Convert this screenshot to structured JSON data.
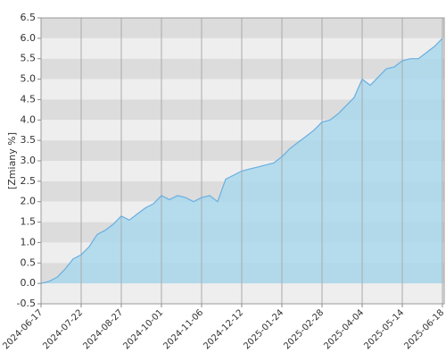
{
  "chart_data": {
    "type": "area",
    "y_label": "[Zmiany %]",
    "categories": [
      "2024-06-17",
      null,
      null,
      null,
      null,
      "2024-07-22",
      null,
      null,
      null,
      null,
      "2024-08-27",
      null,
      null,
      null,
      null,
      "2024-10-01",
      null,
      null,
      null,
      null,
      "2024-11-06",
      null,
      null,
      null,
      null,
      "2024-12-12",
      null,
      null,
      null,
      null,
      "2025-01-24",
      null,
      null,
      null,
      null,
      "2025-02-28",
      null,
      null,
      null,
      null,
      "2025-04-04",
      null,
      null,
      null,
      null,
      "2025-05-14",
      null,
      null,
      null,
      null,
      "2025-06-18"
    ],
    "values": [
      0.0,
      0.05,
      0.15,
      0.35,
      0.6,
      0.7,
      0.9,
      1.2,
      1.3,
      1.45,
      1.65,
      1.55,
      1.7,
      1.85,
      1.95,
      2.15,
      2.05,
      2.15,
      2.1,
      2.0,
      2.1,
      2.15,
      2.0,
      2.55,
      2.65,
      2.75,
      2.8,
      2.85,
      2.9,
      2.95,
      3.1,
      3.3,
      3.45,
      3.6,
      3.75,
      3.95,
      4.0,
      4.15,
      4.35,
      4.55,
      5.0,
      4.85,
      5.05,
      5.25,
      5.3,
      5.45,
      5.5,
      5.5,
      5.65,
      5.8,
      6.0
    ],
    "color": "#6aaee0",
    "fill": "#a9d8ec",
    "ylim": [
      -0.5,
      6.5
    ],
    "yticks": [
      -0.5,
      {
        "value": 0,
        "label": "0.0"
      },
      0.5,
      {
        "value": 1,
        "label": "1.0"
      },
      1.5,
      {
        "value": 2,
        "label": "2.0"
      },
      2.5,
      {
        "value": 3,
        "label": "3.0"
      },
      3.5,
      {
        "value": 4,
        "label": "4.0"
      },
      4.5,
      {
        "value": 5,
        "label": "5.0"
      },
      5.5,
      {
        "value": 6,
        "label": "6.0"
      },
      6.5
    ],
    "grid": true
  }
}
